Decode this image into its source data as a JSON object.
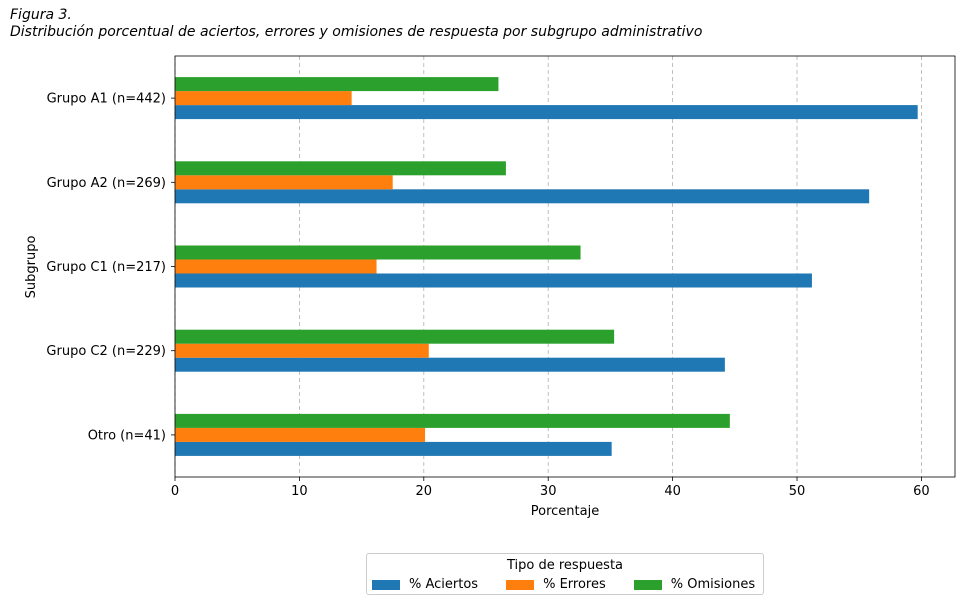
{
  "figure": {
    "label": "Figura 3.",
    "caption": "Distribución porcentual de aciertos, errores y omisiones de respuesta por subgrupo administrativo"
  },
  "chart_data": {
    "type": "bar",
    "orientation": "horizontal",
    "categories": [
      "Grupo A1 (n=442)",
      "Grupo A2 (n=269)",
      "Grupo C1 (n=217)",
      "Grupo C2 (n=229)",
      "Otro (n=41)"
    ],
    "series": [
      {
        "name": "% Aciertos",
        "color": "#1f77b4",
        "values": [
          59.7,
          55.8,
          51.2,
          44.2,
          35.1
        ]
      },
      {
        "name": "% Errores",
        "color": "#ff7f0e",
        "values": [
          14.2,
          17.5,
          16.2,
          20.4,
          20.1
        ]
      },
      {
        "name": "% Omisiones",
        "color": "#2ca02c",
        "values": [
          26.0,
          26.6,
          32.6,
          35.3,
          44.6
        ]
      }
    ],
    "xlabel": "Porcentaje",
    "ylabel": "Subgrupo",
    "xlim": [
      0,
      62.7
    ],
    "xticks": [
      0,
      10,
      20,
      30,
      40,
      50,
      60
    ],
    "grid": "x-dashed",
    "legend": {
      "title": "Tipo de respuesta",
      "placement": "bottom-center"
    }
  }
}
